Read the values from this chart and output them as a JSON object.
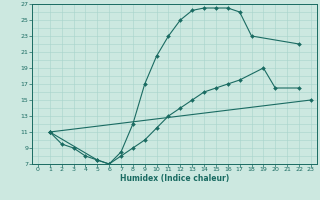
{
  "xlabel": "Humidex (Indice chaleur)",
  "xlim": [
    -0.5,
    23.5
  ],
  "ylim": [
    7,
    27
  ],
  "yticks": [
    7,
    9,
    11,
    13,
    15,
    17,
    19,
    21,
    23,
    25,
    27
  ],
  "xticks": [
    0,
    1,
    2,
    3,
    4,
    5,
    6,
    7,
    8,
    9,
    10,
    11,
    12,
    13,
    14,
    15,
    16,
    17,
    18,
    19,
    20,
    21,
    22,
    23
  ],
  "bg_color": "#cce8e0",
  "line_color": "#1a6b62",
  "curve1_x": [
    1,
    2,
    3,
    4,
    5,
    6,
    7,
    8,
    9,
    10,
    11,
    12,
    13,
    14,
    15,
    16,
    17,
    18,
    22
  ],
  "curve1_y": [
    11,
    9.5,
    9,
    8,
    7.5,
    7,
    8.5,
    12,
    17,
    20.5,
    23,
    25,
    26.2,
    26.5,
    26.5,
    26.5,
    26,
    23,
    22
  ],
  "curve2_x": [
    1,
    5,
    6,
    7,
    8,
    9,
    10,
    11,
    12,
    13,
    14,
    15,
    16,
    17,
    19,
    20,
    22
  ],
  "curve2_y": [
    11,
    7.5,
    7,
    8,
    9,
    10,
    11.5,
    13,
    14,
    15,
    16,
    16.5,
    17,
    17.5,
    19,
    16.5,
    16.5
  ],
  "curve3_x": [
    1,
    23
  ],
  "curve3_y": [
    11,
    15
  ],
  "grid_color": "#a8d4cc"
}
